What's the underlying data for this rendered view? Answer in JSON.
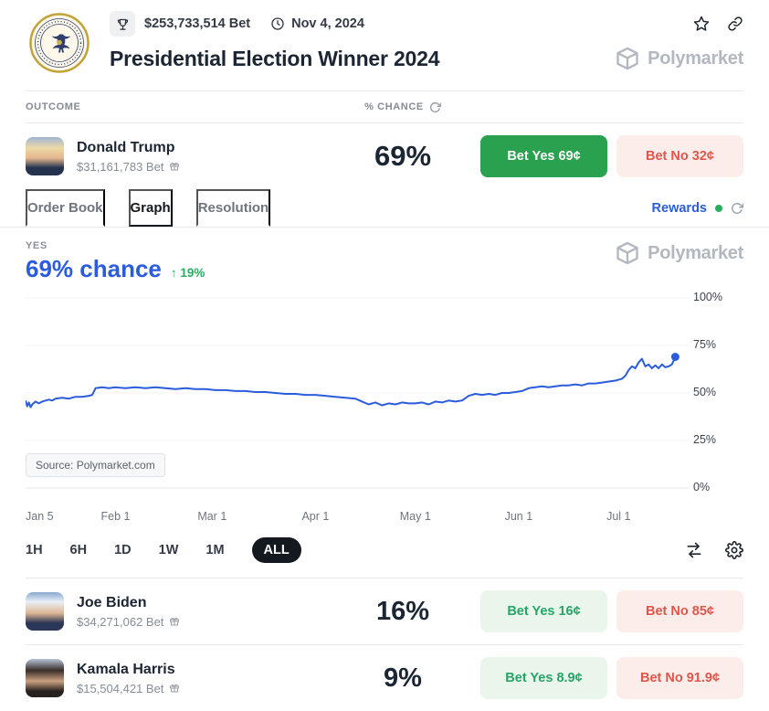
{
  "colors": {
    "chart_line": "#2a5cdc",
    "accent_blue": "#2a5cdc",
    "green_solid": "#2aa14f",
    "green_text": "#27a567",
    "green_light_bg": "#eaf6ec",
    "red_text": "#e0564a",
    "red_light_bg": "#fcedea",
    "brand_gray": "#b3b8c0"
  },
  "header": {
    "volume": "$253,733,514 Bet",
    "date": "Nov 4, 2024",
    "title": "Presidential Election Winner 2024",
    "brand": "Polymarket"
  },
  "table": {
    "outcome": "OUTCOME",
    "chance": "% CHANCE"
  },
  "outcomes": [
    {
      "name": "Donald Trump",
      "volume": "$31,161,783 Bet",
      "chance": "69%",
      "yes": "Bet Yes 69¢",
      "no": "Bet No 32¢"
    },
    {
      "name": "Joe Biden",
      "volume": "$34,271,062 Bet",
      "chance": "16%",
      "yes": "Bet Yes 16¢",
      "no": "Bet No 85¢"
    },
    {
      "name": "Kamala Harris",
      "volume": "$15,504,421 Bet",
      "chance": "9%",
      "yes": "Bet Yes 8.9¢",
      "no": "Bet No 91.9¢"
    }
  ],
  "tabs": {
    "items": [
      "Order Book",
      "Graph",
      "Resolution"
    ],
    "active": "Graph",
    "rewards": "Rewards"
  },
  "chart": {
    "outcome_label": "YES",
    "chance": "69% chance",
    "change_arrow": "↑",
    "change": "19%",
    "source": "Source: Polymarket.com",
    "watermark": "Polymarket"
  },
  "timeframes": {
    "options": [
      "1H",
      "6H",
      "1D",
      "1W",
      "1M",
      "ALL"
    ],
    "active": "ALL"
  },
  "chart_data": {
    "type": "line",
    "title": "Donald Trump — YES % chance over time",
    "ylabel": "% chance",
    "ylim": [
      0,
      100
    ],
    "xlim": [
      0,
      196
    ],
    "x_unit": "days since Jan 5, 2024",
    "grid": "horizontal-light",
    "legend": false,
    "y_ticks": [
      {
        "value": 100,
        "label": "100%"
      },
      {
        "value": 75,
        "label": "75%"
      },
      {
        "value": 50,
        "label": "50%"
      },
      {
        "value": 25,
        "label": "25%"
      },
      {
        "value": 0,
        "label": "0%"
      }
    ],
    "x_ticks": [
      {
        "day": 0,
        "label": "Jan 5"
      },
      {
        "day": 27,
        "label": "Feb 1"
      },
      {
        "day": 56,
        "label": "Mar 1"
      },
      {
        "day": 87,
        "label": "Apr 1"
      },
      {
        "day": 117,
        "label": "May 1"
      },
      {
        "day": 148,
        "label": "Jun 1"
      },
      {
        "day": 178,
        "label": "Jul 1"
      }
    ],
    "series": [
      {
        "name": "Yes",
        "final_value": 69,
        "change": "+19%",
        "points": [
          [
            0,
            46
          ],
          [
            0.5,
            43
          ],
          [
            1,
            45
          ],
          [
            1.5,
            42.5
          ],
          [
            2,
            44
          ],
          [
            3,
            45.5
          ],
          [
            4,
            44.5
          ],
          [
            5,
            45.5
          ],
          [
            6,
            46
          ],
          [
            7,
            46.5
          ],
          [
            8,
            46
          ],
          [
            9,
            47
          ],
          [
            11,
            47.5
          ],
          [
            13,
            47
          ],
          [
            15,
            48
          ],
          [
            17,
            48
          ],
          [
            19,
            48.5
          ],
          [
            20,
            49
          ],
          [
            21,
            52.5
          ],
          [
            23,
            53
          ],
          [
            25,
            52.5
          ],
          [
            27,
            53
          ],
          [
            30,
            52.5
          ],
          [
            33,
            53
          ],
          [
            36,
            52.5
          ],
          [
            39,
            53
          ],
          [
            42,
            52.5
          ],
          [
            45,
            52
          ],
          [
            48,
            52.5
          ],
          [
            51,
            52
          ],
          [
            54,
            52
          ],
          [
            57,
            51.5
          ],
          [
            60,
            51.5
          ],
          [
            63,
            51
          ],
          [
            66,
            51
          ],
          [
            69,
            50.5
          ],
          [
            72,
            50.5
          ],
          [
            75,
            50
          ],
          [
            78,
            49.5
          ],
          [
            81,
            49.5
          ],
          [
            84,
            49
          ],
          [
            87,
            49
          ],
          [
            90,
            48.5
          ],
          [
            93,
            48
          ],
          [
            96,
            47.5
          ],
          [
            99,
            47
          ],
          [
            101,
            45.5
          ],
          [
            103,
            44
          ],
          [
            105,
            45
          ],
          [
            107,
            43.5
          ],
          [
            109,
            44.5
          ],
          [
            111,
            44
          ],
          [
            113,
            45
          ],
          [
            115,
            44.5
          ],
          [
            117,
            44.5
          ],
          [
            119,
            45
          ],
          [
            121,
            44
          ],
          [
            123,
            45.5
          ],
          [
            125,
            45
          ],
          [
            127,
            46
          ],
          [
            129,
            45.5
          ],
          [
            131,
            46
          ],
          [
            133,
            48.5
          ],
          [
            135,
            49.5
          ],
          [
            137,
            49
          ],
          [
            139,
            49.5
          ],
          [
            141,
            49
          ],
          [
            143,
            50
          ],
          [
            145,
            50
          ],
          [
            147,
            50.5
          ],
          [
            149,
            51
          ],
          [
            151,
            52.5
          ],
          [
            153,
            53
          ],
          [
            155,
            53.5
          ],
          [
            157,
            53
          ],
          [
            159,
            53.5
          ],
          [
            161,
            54
          ],
          [
            163,
            54
          ],
          [
            165,
            54.5
          ],
          [
            167,
            54
          ],
          [
            169,
            55
          ],
          [
            171,
            55
          ],
          [
            173,
            55.5
          ],
          [
            175,
            56
          ],
          [
            177,
            56.5
          ],
          [
            179,
            57.5
          ],
          [
            180,
            59
          ],
          [
            181,
            62
          ],
          [
            182,
            64
          ],
          [
            183,
            63
          ],
          [
            184,
            66
          ],
          [
            185,
            68
          ],
          [
            186,
            64
          ],
          [
            187,
            65
          ],
          [
            188,
            63
          ],
          [
            189,
            64.5
          ],
          [
            190,
            63
          ],
          [
            191,
            65
          ],
          [
            192,
            63.5
          ],
          [
            193,
            64
          ],
          [
            194,
            65
          ],
          [
            195,
            69
          ]
        ]
      }
    ]
  }
}
